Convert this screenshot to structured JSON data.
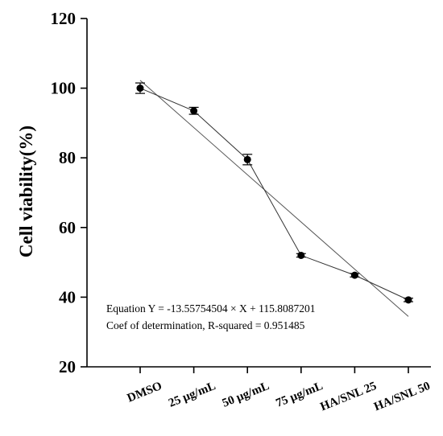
{
  "chart_data": {
    "type": "line",
    "title": "",
    "xlabel": "",
    "ylabel": "Cell viability(%)",
    "categories": [
      "DMSO",
      "25 μg/mL",
      "50 μg/mL",
      "75 μg/mL",
      "HA/SNL 25",
      "HA/SNL 50"
    ],
    "series": [
      {
        "values": [
          100,
          93.5,
          79.5,
          52,
          46.3,
          39.2
        ],
        "errors": [
          1.5,
          1.0,
          1.5,
          0.5,
          0.5,
          0.5
        ]
      }
    ],
    "fit": {
      "slope": -13.55754504,
      "intercept": 115.8087201
    },
    "ylim": [
      20,
      120
    ],
    "yticks": [
      20,
      40,
      60,
      80,
      100,
      120
    ],
    "annotations": [
      "Equation Y = -13.55754504 × X + 115.8087201",
      "Coef of determination, R-squared = 0.951485"
    ],
    "grid": false,
    "legend": "none"
  }
}
